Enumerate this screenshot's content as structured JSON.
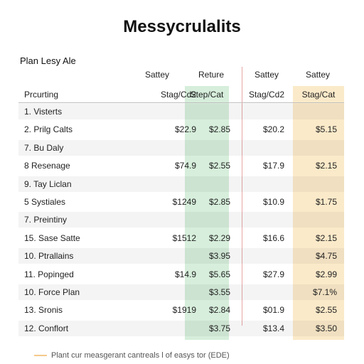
{
  "title": "Messycrulalits",
  "plan_label": "Plan Lesy Ale",
  "group_headers": [
    "Sattey",
    "Reture",
    "Sattey",
    "Sattey"
  ],
  "columns": {
    "label": "Prcurting",
    "c1": "Stag/Cd2",
    "c2": "Step/Cat",
    "c3": "Stag/Cd2",
    "c4": "Stag/Cat"
  },
  "rows": [
    {
      "label": "1.  Visterts",
      "v1": "",
      "v2": "",
      "v3": "",
      "v4": ""
    },
    {
      "label": "2.  Prilg Calts",
      "v1": "$22.9",
      "v2": "$2.85",
      "v3": "$20.2",
      "v4": "$5.15"
    },
    {
      "label": "7.  Bu Daly",
      "v1": "",
      "v2": "",
      "v3": "",
      "v4": ""
    },
    {
      "label": "8   Resenage",
      "v1": "$74.9",
      "v2": "$2.55",
      "v3": "$17.9",
      "v4": "$2.15"
    },
    {
      "label": "9.  Tay Liclan",
      "v1": "",
      "v2": "",
      "v3": "",
      "v4": ""
    },
    {
      "label": "5   Systiales",
      "v1": "$1249",
      "v2": "$2.85",
      "v3": "$10.9",
      "v4": "$1.75"
    },
    {
      "label": "7.  Preintiny",
      "v1": "",
      "v2": "",
      "v3": "",
      "v4": ""
    },
    {
      "label": "15. Sase Satte",
      "v1": "$1512",
      "v2": "$2.29",
      "v3": "$16.6",
      "v4": "$2.15"
    },
    {
      "label": "10. Ptrallains",
      "v1": "",
      "v2": "$3.95",
      "v3": "",
      "v4": "$4.75"
    },
    {
      "label": "11. Popinged",
      "v1": "$14.9",
      "v2": "$5.65",
      "v3": "$27.9",
      "v4": "$2.99"
    },
    {
      "label": "10. Force Plan",
      "v1": "",
      "v2": "$3.55",
      "v3": "",
      "v4": "$7.1%"
    },
    {
      "label": "13. Sronis",
      "v1": "$1919",
      "v2": "$2.84",
      "v3": "$01.9",
      "v4": "$2.55"
    },
    {
      "label": "12. Conflort",
      "v1": "",
      "v2": "$3.75",
      "v3": "$13.4",
      "v4": "$3.50"
    }
  ],
  "footer": "Plant cur measgerant cantreals l of easys tor (EDE)",
  "colors": {
    "green_column": "#cdebd3",
    "orange_column": "#f9e1b4",
    "divider": "#e8a6a6"
  }
}
